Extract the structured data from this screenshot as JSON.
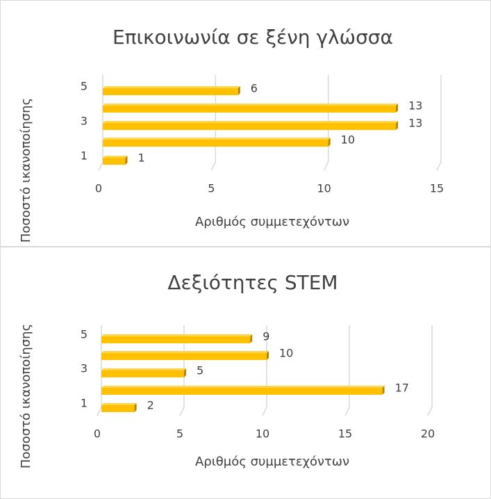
{
  "chart_data": [
    {
      "type": "bar",
      "orientation": "horizontal",
      "title": "Επικοινωνία σε ξένη γλώσσα",
      "x_label": "Αριθμός συμμετεχόντων",
      "y_label": "Ποσοστό ικανοποίησης",
      "categories": [
        "1",
        null,
        "3",
        null,
        "5"
      ],
      "values": [
        1,
        10,
        13,
        13,
        6
      ],
      "color": "#ffc000",
      "xlim": [
        0,
        15
      ],
      "xticks": [
        0,
        5,
        10,
        15
      ],
      "grid": true
    },
    {
      "type": "bar",
      "orientation": "horizontal",
      "title": "Δεξιότητες STEM",
      "x_label": "Αριθμός συμμετεχόντων",
      "y_label": "Ποσοστό ικανοποίησης",
      "categories": [
        "1",
        null,
        "3",
        null,
        "5"
      ],
      "values": [
        2,
        17,
        5,
        10,
        9
      ],
      "color": "#ffc000",
      "xlim": [
        0,
        20
      ],
      "xticks": [
        0,
        5,
        10,
        15,
        20
      ],
      "grid": true
    }
  ]
}
